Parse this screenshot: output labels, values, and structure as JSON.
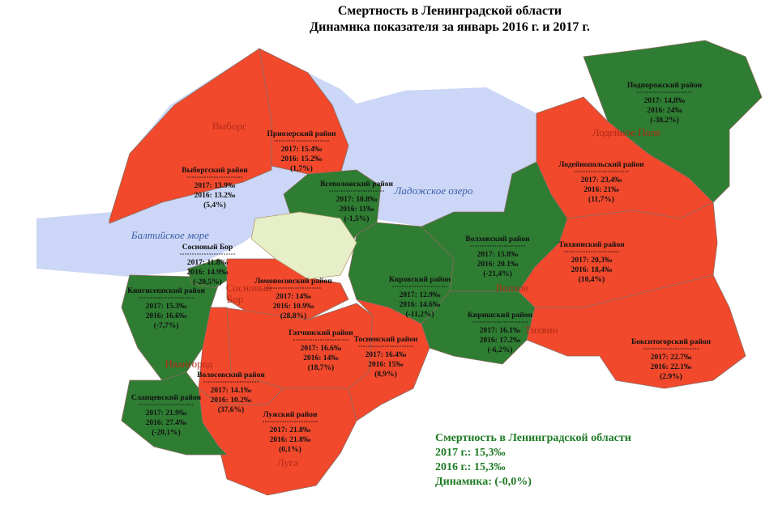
{
  "title": [
    "Смертность в Ленинградской области",
    "Динамика показателя за январь 2016 г. и 2017 г."
  ],
  "regions": [
    {
      "name": "Приозерский район",
      "y2017": "2017: 15.4‰",
      "y2016": "2016: 15.2‰",
      "change": "(1,7%)",
      "color": "#f2492c"
    },
    {
      "name": "Выборгский район",
      "y2017": "2017: 13.9‰",
      "y2016": "2016: 13.2‰",
      "change": "(5,4%)",
      "color": "#f2492c"
    },
    {
      "name": "Всеволожский район",
      "y2017": "2017: 10.8‰",
      "y2016": "2016: 11‰",
      "change": "(-1,5%)",
      "color": "#2e7d32"
    },
    {
      "name": "Сосновый Бор",
      "y2017": "2017: 11.8‰",
      "y2016": "2016: 14.9‰",
      "change": "(-20,5%)",
      "color": "#2e7d32"
    },
    {
      "name": "Кингисеппский район",
      "y2017": "2017: 15.3‰",
      "y2016": "2016: 16.6‰",
      "change": "(-7,7%)",
      "color": "#2e7d32"
    },
    {
      "name": "Ломоносовский район",
      "y2017": "2017: 14‰",
      "y2016": "2016: 10.9‰",
      "change": "(28,8%)",
      "color": "#f2492c"
    },
    {
      "name": "Гатчинский район",
      "y2017": "2017: 16.6‰",
      "y2016": "2016: 14‰",
      "change": "(18,7%)",
      "color": "#f2492c"
    },
    {
      "name": "Тосненский район",
      "y2017": "2017: 16.4‰",
      "y2016": "2016: 15‰",
      "change": "(8,9%)",
      "color": "#f2492c"
    },
    {
      "name": "Кировский район",
      "y2017": "2017: 12.9‰",
      "y2016": "2016: 14.6‰",
      "change": "(-11,2%)",
      "color": "#2e7d32"
    },
    {
      "name": "Волховский район",
      "y2017": "2017: 15.8‰",
      "y2016": "2016: 20.1‰",
      "change": "(-21,4%)",
      "color": "#2e7d32"
    },
    {
      "name": "Киришский район",
      "y2017": "2017: 16.1‰",
      "y2016": "2016: 17.2‰",
      "change": "(-6,2%)",
      "color": "#2e7d32"
    },
    {
      "name": "Подпорожский район",
      "y2017": "2017: 14,8‰",
      "y2016": "2016: 24‰",
      "change": "(-38,2%)",
      "color": "#2e7d32"
    },
    {
      "name": "Лодейнопольский район",
      "y2017": "2017: 23,4‰",
      "y2016": "2016: 21‰",
      "change": "(11,7%)",
      "color": "#f2492c"
    },
    {
      "name": "Тихвинский район",
      "y2017": "2017: 20,3‰",
      "y2016": "2016: 18,4‰",
      "change": "(10,4%)",
      "color": "#f2492c"
    },
    {
      "name": "Бокситогорский район",
      "y2017": "2017: 22.7‰",
      "y2016": "2016: 22.1‰",
      "change": "(2.9%)",
      "color": "#f2492c"
    },
    {
      "name": "Волосовский район",
      "y2017": "2017: 14.1‰",
      "y2016": "2016: 10.2‰",
      "change": "(37,6%)",
      "color": "#f2492c"
    },
    {
      "name": "Лужский район",
      "y2017": "2017: 21.8‰",
      "y2016": "2016: 21.8‰",
      "change": "(0,1%)",
      "color": "#f2492c"
    },
    {
      "name": "Сланцевский район",
      "y2017": "2017: 21.9‰",
      "y2016": "2016: 27.4‰",
      "change": "(-20,1%)",
      "color": "#2e7d32"
    }
  ],
  "places": [
    "Выборг",
    "Лодейное Поле",
    "Волхов",
    "Тихвин",
    "Сосновый",
    "Бор",
    "Ивангород",
    "Луга"
  ],
  "waters": [
    "Балтийское море",
    "Ладожское озеро"
  ],
  "summary": [
    "Смертность в Ленинградской области",
    "2017 г.: 15,3‰",
    "2016 г.: 15,3‰",
    "Динамика: (-0,0%)"
  ]
}
